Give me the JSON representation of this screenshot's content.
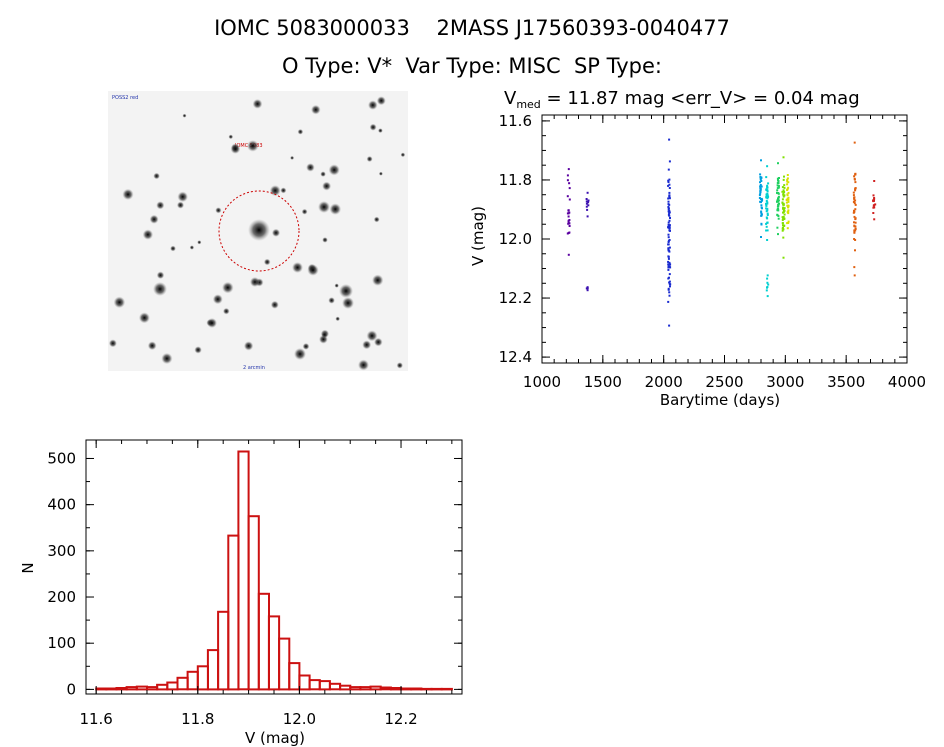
{
  "header": {
    "line1": "IOMC 5083000033    2MASS J17560393-0040477",
    "line2": "O Type: V*  Var Type: MISC  SP Type:"
  },
  "stamp": {
    "top_left_label": "POSS2 red",
    "center_label": "IOMC 5083",
    "bottom_label": "2 arcmin",
    "colors": {
      "circle": "#cc0000",
      "background": "#f3f3f3"
    }
  },
  "chart_data": [
    {
      "type": "scatter",
      "title": "V",
      "title_sub": "med",
      "title_rest": " = 11.87 mag <err_V> = 0.04 mag",
      "xlabel": "Barytime (days)",
      "ylabel": "V (mag)",
      "xlim": [
        1000,
        4000
      ],
      "ylim": [
        12.42,
        11.58
      ],
      "x_ticks": [
        1000,
        1500,
        2000,
        2500,
        3000,
        3500,
        4000
      ],
      "y_ticks": [
        11.6,
        11.8,
        12.0,
        12.2,
        12.4
      ],
      "y_tick_labels": [
        "11.6",
        "11.8",
        "12.0",
        "12.2",
        "12.4"
      ],
      "color_scale": "rainbow by time",
      "groups": [
        {
          "x": 1220,
          "ymin": 11.76,
          "ymax": 12.05,
          "n": 22,
          "color": "#5a00a0"
        },
        {
          "x": 1375,
          "ymin": 11.84,
          "ymax": 11.92,
          "n": 8,
          "color": "#3b10b0"
        },
        {
          "x": 1375,
          "ymin": 12.16,
          "ymax": 12.17,
          "n": 2,
          "color": "#3b10b0"
        },
        {
          "x": 2045,
          "ymin": 11.66,
          "ymax": 12.29,
          "n": 80,
          "color": "#1a2bd0"
        },
        {
          "x": 2800,
          "ymin": 11.73,
          "ymax": 11.99,
          "n": 40,
          "color": "#009fe0"
        },
        {
          "x": 2850,
          "ymin": 11.75,
          "ymax": 12.0,
          "n": 45,
          "color": "#00d0d0"
        },
        {
          "x": 2855,
          "ymin": 12.12,
          "ymax": 12.19,
          "n": 6,
          "color": "#00d0d0"
        },
        {
          "x": 2940,
          "ymin": 11.74,
          "ymax": 11.98,
          "n": 40,
          "color": "#20d060"
        },
        {
          "x": 2985,
          "ymin": 11.72,
          "ymax": 12.06,
          "n": 45,
          "color": "#80e000"
        },
        {
          "x": 3020,
          "ymin": 11.78,
          "ymax": 11.96,
          "n": 30,
          "color": "#d8e000"
        },
        {
          "x": 3570,
          "ymin": 11.67,
          "ymax": 12.12,
          "n": 45,
          "color": "#e06010"
        },
        {
          "x": 3730,
          "ymin": 11.8,
          "ymax": 11.93,
          "n": 12,
          "color": "#d02020"
        }
      ]
    },
    {
      "type": "bar",
      "xlabel": "V (mag)",
      "ylabel": "N",
      "xlim": [
        11.58,
        12.32
      ],
      "ylim": [
        -10,
        540
      ],
      "x_ticks": [
        11.6,
        11.8,
        12.0,
        12.2
      ],
      "x_tick_labels": [
        "11.6",
        "11.8",
        "12.0",
        "12.2"
      ],
      "y_ticks": [
        0,
        100,
        200,
        300,
        400,
        500
      ],
      "bin_start": 11.6,
      "bin_width": 0.02,
      "values": [
        2,
        2,
        3,
        5,
        6,
        5,
        10,
        15,
        25,
        38,
        50,
        85,
        168,
        333,
        515,
        375,
        207,
        158,
        110,
        57,
        30,
        20,
        18,
        12,
        8,
        5,
        5,
        6,
        4,
        3,
        2,
        2,
        1,
        1,
        1
      ],
      "color": "#cc1111"
    }
  ]
}
